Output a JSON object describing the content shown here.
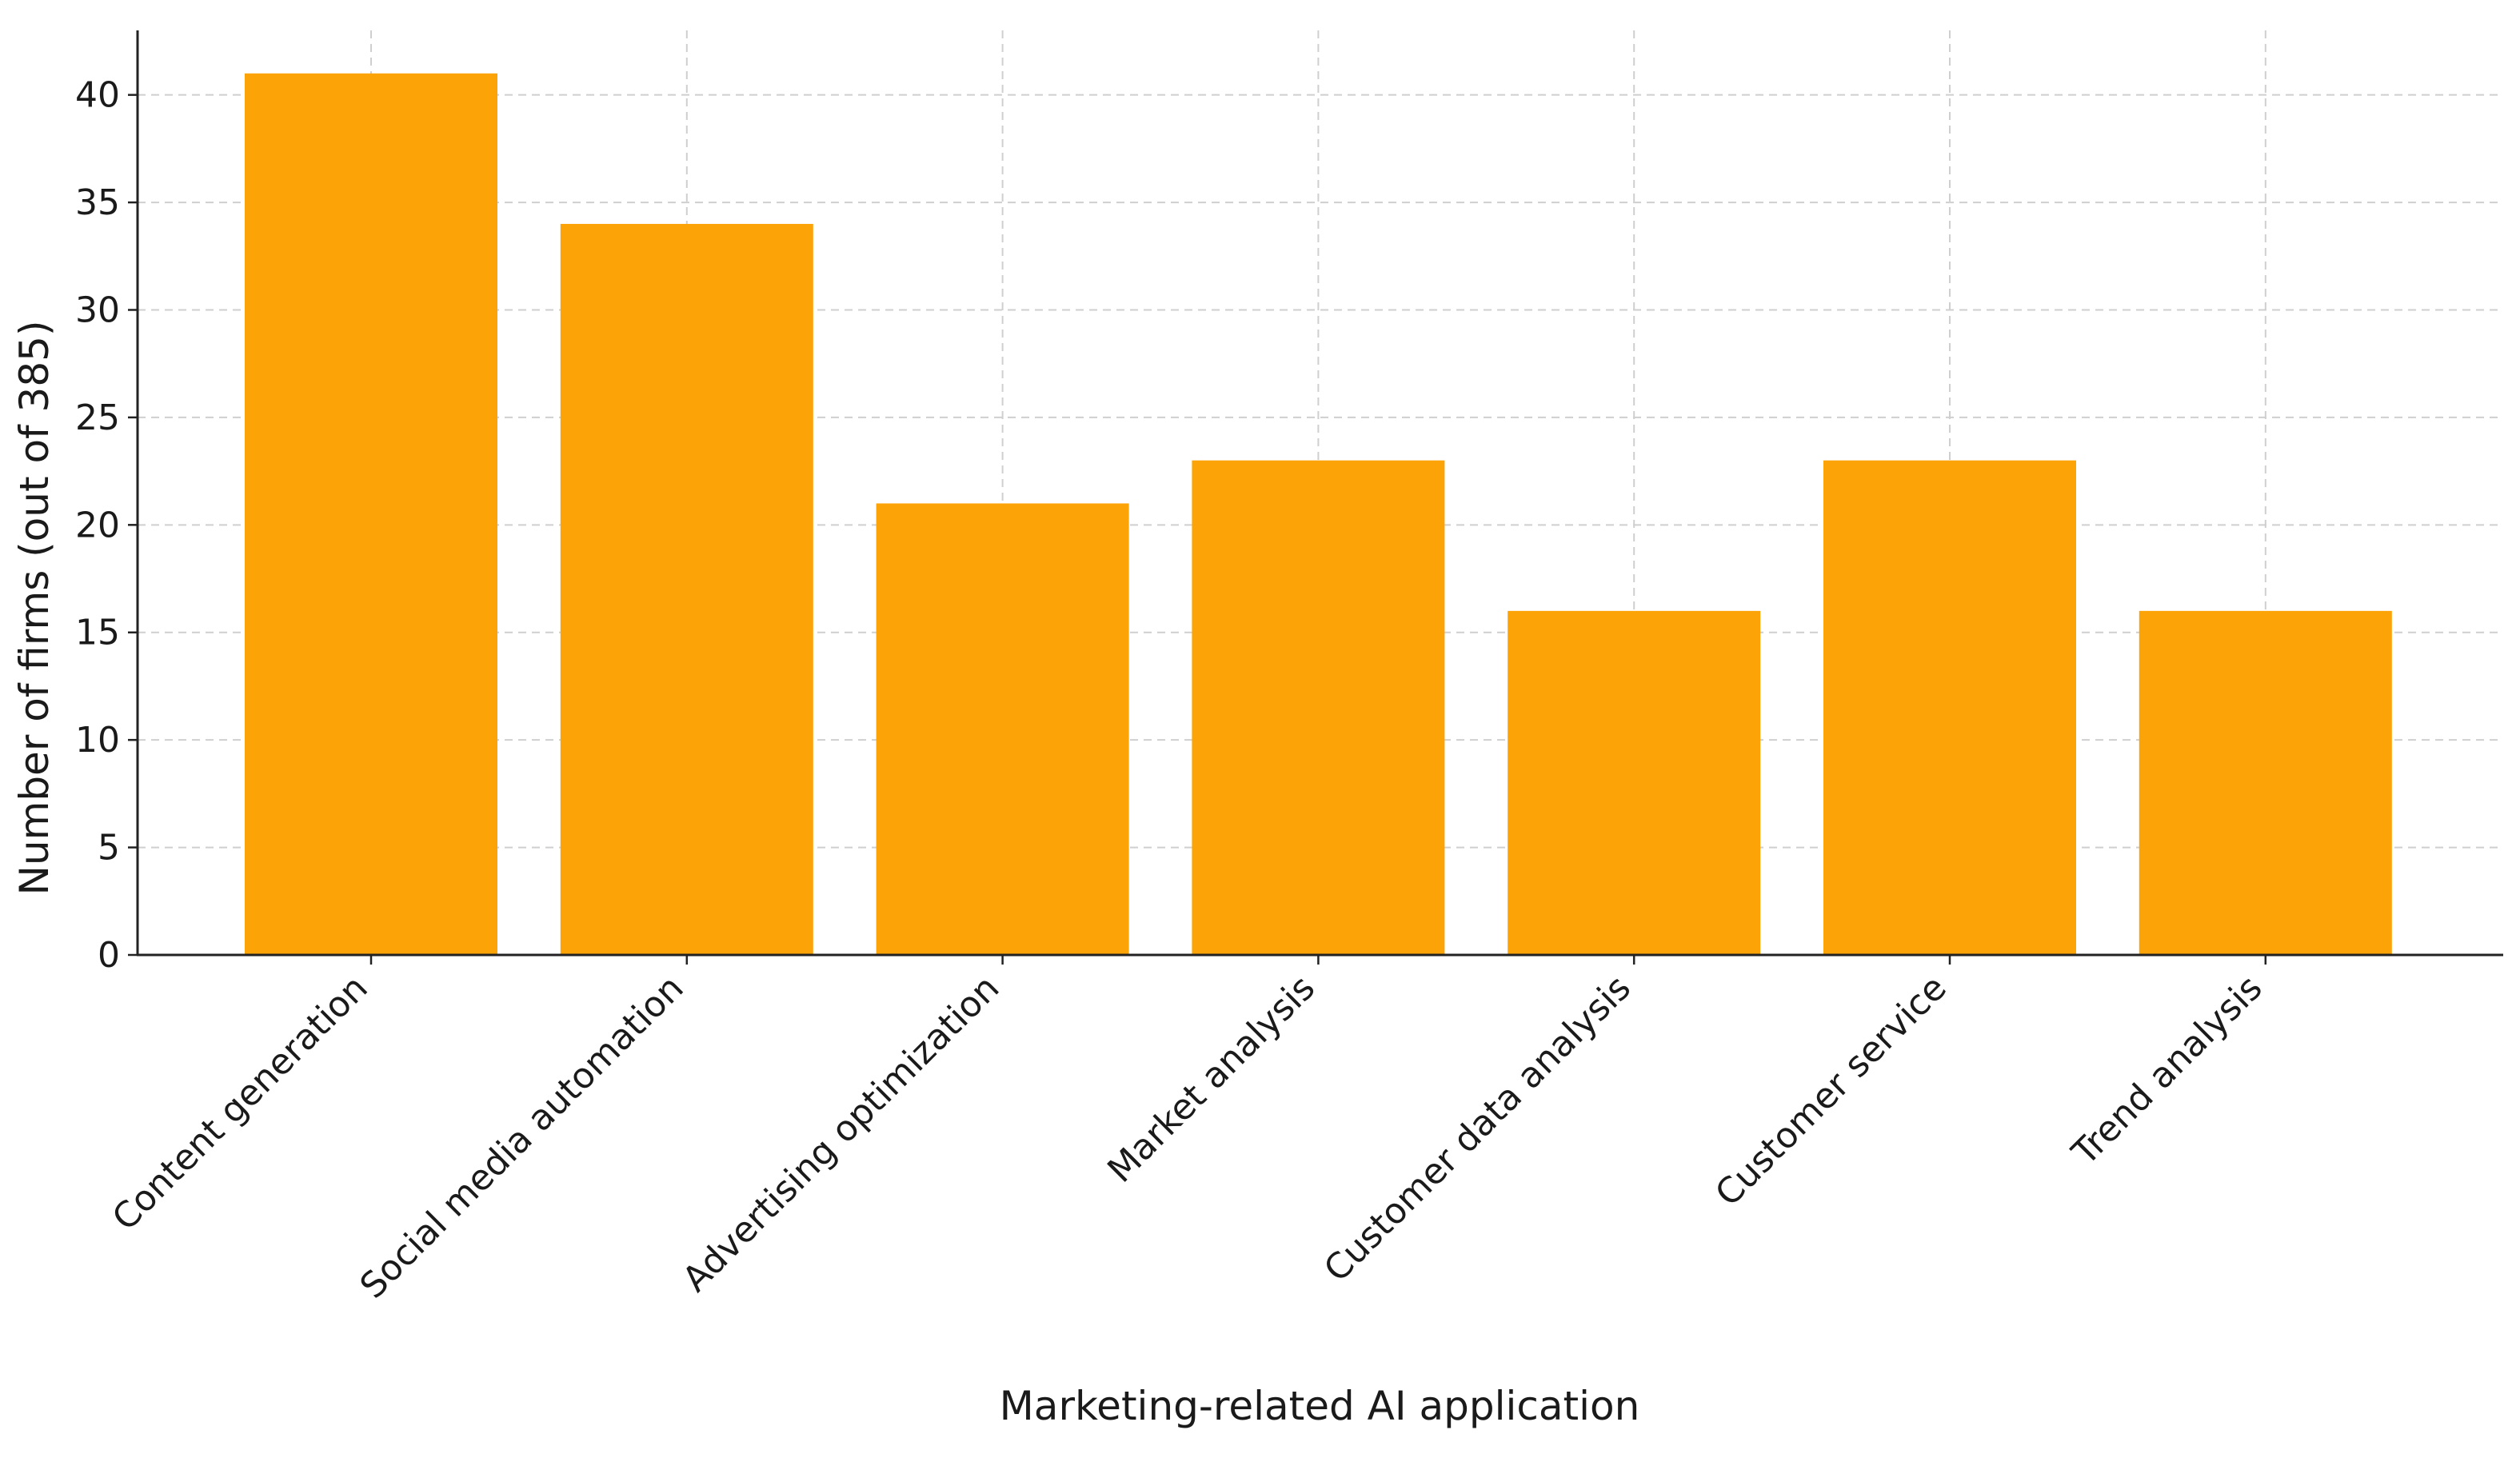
{
  "chart_data": {
    "type": "bar",
    "title": "",
    "xlabel": "Marketing-related AI application",
    "ylabel": "Number of firms (out of 385)",
    "categories": [
      "Content generation",
      "Social media automation",
      "Advertising optimization",
      "Market analysis",
      "Customer data analysis",
      "Customer service",
      "Trend analysis"
    ],
    "values": [
      41,
      34,
      21,
      23,
      16,
      23,
      16
    ],
    "ylim": [
      0,
      43
    ],
    "yticks": [
      0,
      5,
      10,
      15,
      20,
      25,
      30,
      35,
      40
    ],
    "grid": true,
    "bar_color": "#FBA307"
  }
}
